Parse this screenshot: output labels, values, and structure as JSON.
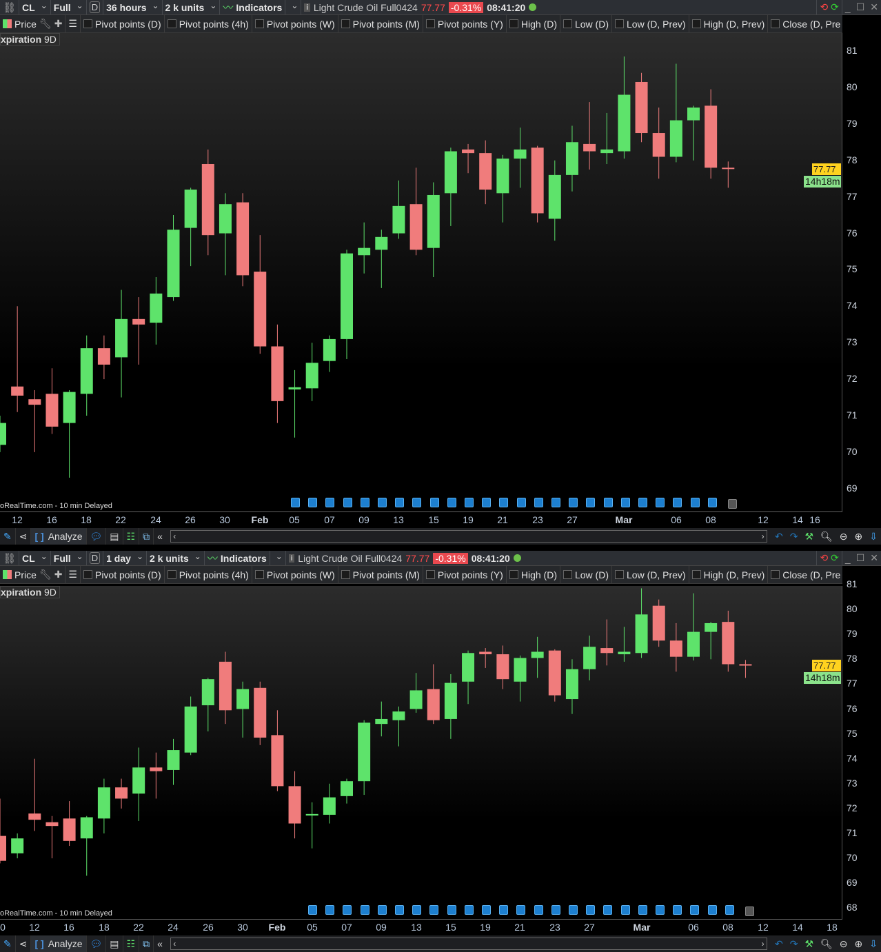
{
  "colors": {
    "up": "#5ee36b",
    "down": "#f07c7c",
    "price_tag": "#ffd21f",
    "countdown": "#8be28b",
    "accent_change": "#e9494f",
    "marker": "#1d7fcf"
  },
  "icons": {
    "close": "close-icon",
    "minimize": "minimize-icon",
    "maximize": "maximize-icon",
    "refresh": "refresh-icon",
    "info": "info-icon",
    "link": "link-icon",
    "news": "document-icon"
  },
  "panels": [
    {
      "symbol": "CL",
      "mode": "Full",
      "period": "D",
      "timeframe": "36 hours",
      "units": "2 k units",
      "indicators": "Indicators",
      "instrument": "Light Crude Oil Full0424",
      "price": "77.77",
      "change": "-0.31%",
      "time": "08:41:20",
      "dates": [
        "12",
        "16",
        "18",
        "22",
        "24",
        "26",
        "30",
        "Feb",
        "05",
        "07",
        "09",
        "13",
        "15",
        "19",
        "21",
        "23",
        "27",
        "Mar",
        "06",
        "08",
        "12",
        "14",
        "16"
      ],
      "price_labels": [
        "81",
        "80",
        "79",
        "78",
        "77",
        "76",
        "75",
        "74",
        "73",
        "72",
        "71",
        "70",
        "69"
      ]
    },
    {
      "symbol": "CL",
      "mode": "Full",
      "period": "D",
      "timeframe": "1 day",
      "units": "2 k units",
      "indicators": "Indicators",
      "instrument": "Light Crude Oil Full0424",
      "price": "77.77",
      "change": "-0.31%",
      "time": "08:41:20",
      "dates": [
        "0",
        "12",
        "16",
        "18",
        "22",
        "24",
        "26",
        "30",
        "Feb",
        "05",
        "07",
        "09",
        "13",
        "15",
        "19",
        "21",
        "23",
        "27",
        "Mar",
        "06",
        "08",
        "12",
        "14",
        "18"
      ],
      "price_labels": [
        "81",
        "80",
        "79",
        "78",
        "77",
        "76",
        "75",
        "74",
        "73",
        "72",
        "71",
        "70",
        "69",
        "68"
      ]
    }
  ],
  "indicator_bar": {
    "price": "Price",
    "checkboxes": [
      "Pivot points (D)",
      "Pivot points (4h)",
      "Pivot points (W)",
      "Pivot points (M)",
      "Pivot points (Y)",
      "High (D)",
      "Low (D)",
      "Low (D, Prev)",
      "High (D, Prev)",
      "Close (D, Pre"
    ]
  },
  "expiration": {
    "label": "xpiration",
    "value": "9D"
  },
  "watermark": "oRealTime.com - 10 min Delayed",
  "price_tag": "77.77",
  "countdown": "14h18m",
  "bottom_toolbar": {
    "analyze": "Analyze"
  },
  "chart_data": {
    "type": "candlestick",
    "instrument": "Light Crude Oil Full0424",
    "ohlc": [
      [
        70.9,
        69.9,
        72.4,
        69.8
      ],
      [
        70.2,
        70.8,
        71.0,
        70.0
      ],
      [
        71.8,
        71.55,
        74.0,
        71.1
      ],
      [
        71.45,
        71.3,
        71.7,
        70.0
      ],
      [
        71.6,
        70.7,
        72.3,
        70.5
      ],
      [
        70.8,
        71.65,
        71.7,
        69.3
      ],
      [
        71.6,
        72.85,
        73.2,
        71.0
      ],
      [
        72.85,
        72.4,
        73.2,
        72.0
      ],
      [
        72.6,
        73.65,
        74.45,
        71.5
      ],
      [
        73.65,
        73.5,
        74.25,
        72.4
      ],
      [
        73.55,
        74.35,
        74.8,
        72.95
      ],
      [
        74.25,
        76.1,
        76.5,
        74.15
      ],
      [
        76.15,
        77.2,
        77.25,
        75.1
      ],
      [
        77.9,
        75.95,
        78.3,
        75.4
      ],
      [
        76.0,
        76.8,
        77.1,
        74.85
      ],
      [
        76.85,
        74.85,
        77.1,
        74.55
      ],
      [
        74.95,
        72.9,
        75.95,
        72.7
      ],
      [
        72.9,
        71.4,
        73.5,
        70.8
      ],
      [
        71.72,
        71.78,
        72.25,
        70.4
      ],
      [
        71.75,
        72.45,
        73.0,
        71.4
      ],
      [
        72.5,
        73.1,
        73.2,
        72.2
      ],
      [
        73.1,
        75.45,
        75.55,
        72.55
      ],
      [
        75.4,
        75.6,
        76.3,
        74.9
      ],
      [
        75.55,
        75.9,
        76.1,
        74.5
      ],
      [
        76.0,
        76.75,
        77.45,
        75.85
      ],
      [
        76.8,
        75.55,
        77.8,
        75.4
      ],
      [
        75.6,
        77.05,
        77.4,
        74.8
      ],
      [
        77.1,
        78.25,
        78.35,
        76.2
      ],
      [
        78.3,
        78.2,
        78.45,
        77.65
      ],
      [
        78.2,
        77.2,
        78.55,
        76.8
      ],
      [
        77.1,
        78.05,
        78.15,
        76.3
      ],
      [
        78.05,
        78.3,
        78.9,
        77.25
      ],
      [
        78.35,
        76.55,
        78.4,
        76.3
      ],
      [
        76.4,
        77.6,
        78.0,
        75.8
      ],
      [
        77.6,
        78.5,
        78.95,
        77.15
      ],
      [
        78.45,
        78.25,
        79.6,
        77.75
      ],
      [
        78.2,
        78.3,
        79.3,
        77.9
      ],
      [
        78.25,
        79.8,
        80.85,
        78.05
      ],
      [
        80.15,
        78.75,
        80.4,
        78.5
      ],
      [
        78.75,
        78.1,
        79.45,
        77.5
      ],
      [
        78.1,
        79.1,
        80.65,
        77.95
      ],
      [
        79.1,
        79.45,
        79.5,
        78.0
      ],
      [
        79.5,
        77.8,
        79.95,
        77.5
      ],
      [
        77.8,
        77.77,
        77.97,
        77.25
      ]
    ],
    "ohlc_order": [
      "open",
      "close",
      "high",
      "low"
    ],
    "last_price": 77.77,
    "ylim_top": [
      68.5,
      81.3
    ],
    "ylim_bottom": [
      67.9,
      81.1
    ]
  }
}
